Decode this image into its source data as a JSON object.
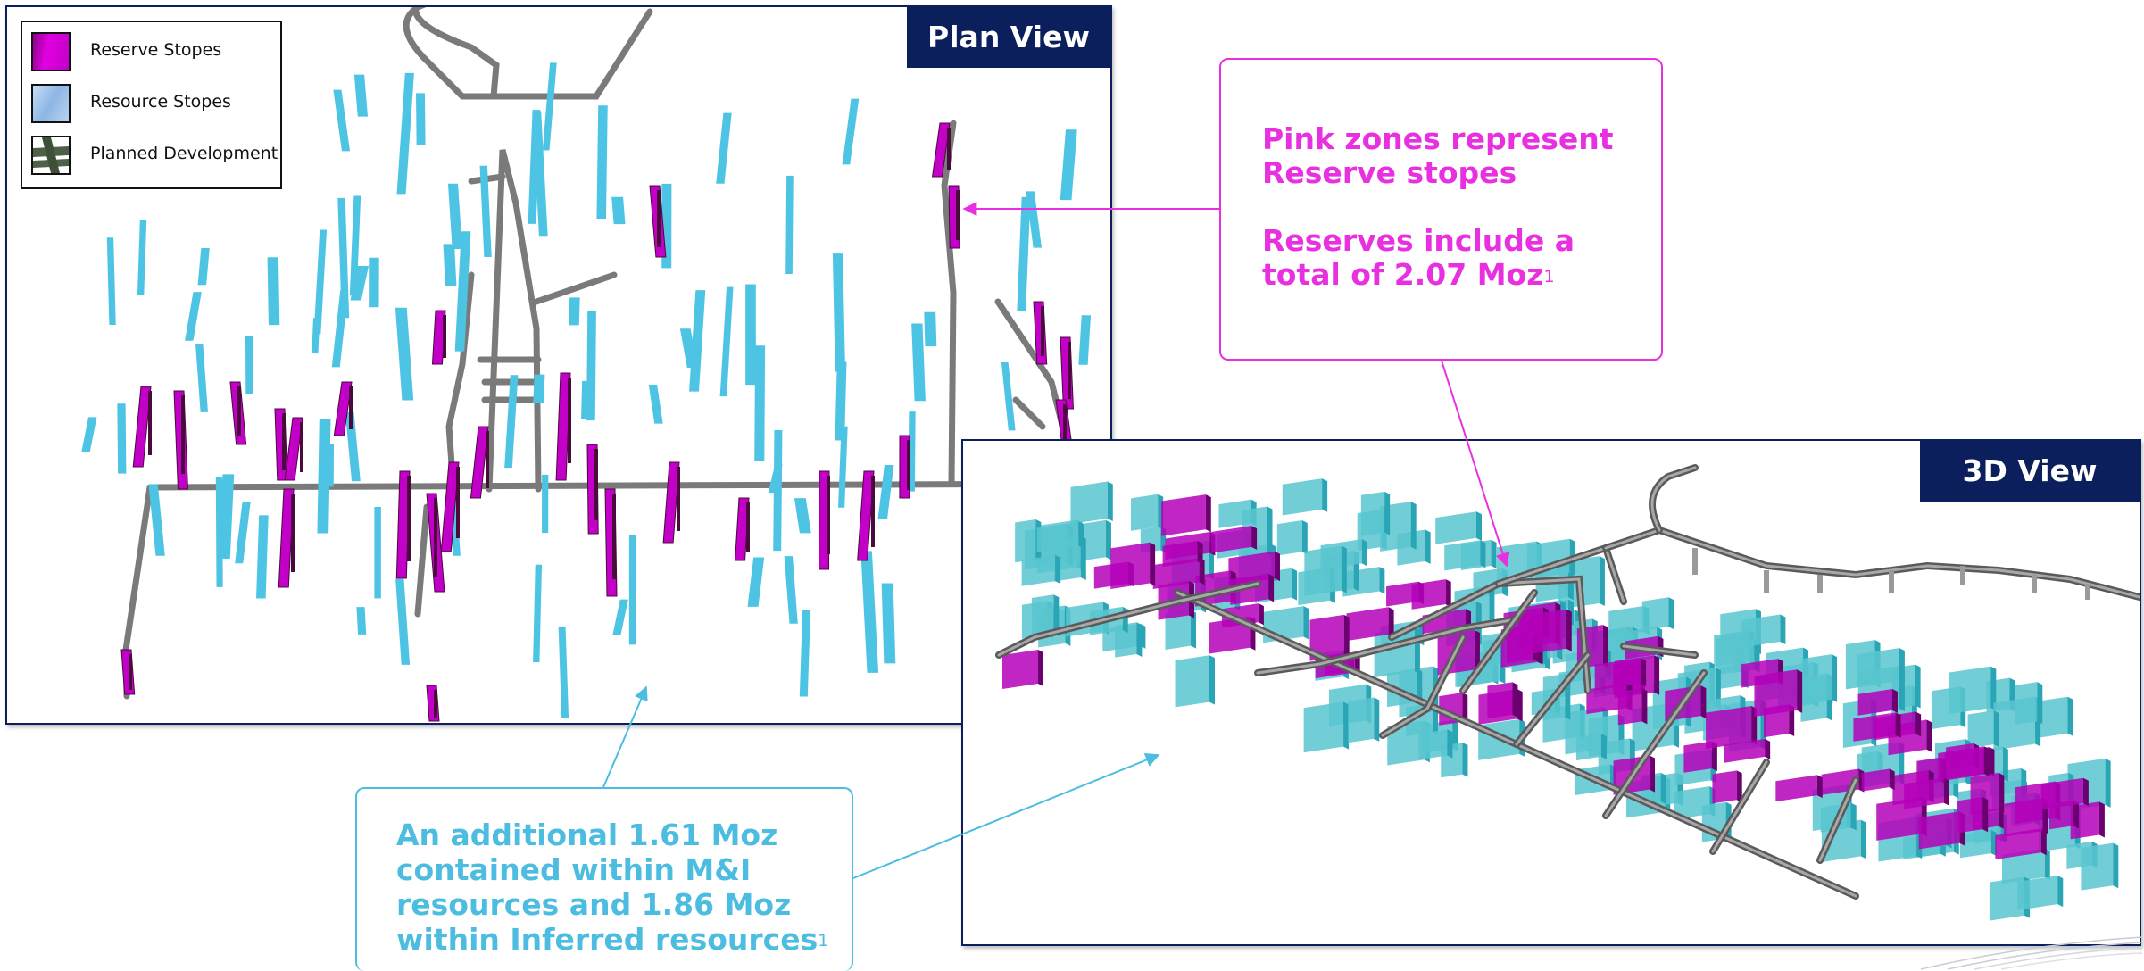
{
  "plan_view": {
    "title": "Plan View",
    "legend": [
      {
        "label": "Reserve Stopes",
        "color": "#d400d4"
      },
      {
        "label": "Resource Stopes",
        "color": "#a9c8ea"
      },
      {
        "label": "Planned Development",
        "color": "#4d6148"
      }
    ]
  },
  "view_3d": {
    "title": "3D View"
  },
  "callout_reserve": {
    "line1": "Pink zones represent",
    "line2": "Reserve stopes",
    "line3": "Reserves include a",
    "line4": "total of 2.07 Moz",
    "footnote": "1",
    "color": "#e830e0"
  },
  "callout_resource": {
    "line1": "An additional 1.61 Moz",
    "line2": "contained within M&I",
    "line3": "resources and 1.86 Moz",
    "line4": "within Inferred resources",
    "footnote": "1",
    "color": "#4cbde0"
  },
  "colors": {
    "reserve": "#c300c8",
    "reserve_dark": "#4a0a3c",
    "resource": "#4ec4e4",
    "development": "#7a7a7a",
    "title_bg": "#0b1f5c"
  }
}
